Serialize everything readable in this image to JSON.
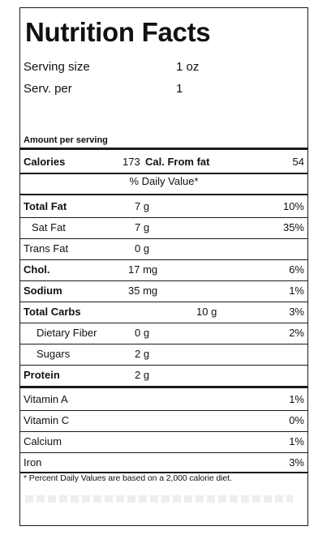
{
  "title": "Nutrition Facts",
  "serving": {
    "size_label": "Serving size",
    "size_value": "1 oz",
    "per_label": "Serv. per",
    "per_value": "1"
  },
  "amount_label": "Amount per serving",
  "calories": {
    "label": "Calories",
    "value": "173",
    "unit_from_fat": "Cal. From fat",
    "fat_value": "54"
  },
  "daily_value_header": "% Daily Value*",
  "nutrients": [
    {
      "label": "Total Fat",
      "amount": "7 g",
      "dv": "10%"
    },
    {
      "label": "Sat Fat",
      "amount": "7 g",
      "dv": "35%"
    },
    {
      "label": "Trans Fat",
      "amount": "0 g",
      "dv": ""
    },
    {
      "label": "Chol.",
      "amount": "17 mg",
      "dv": "6%"
    },
    {
      "label": "Sodium",
      "amount": "35 mg",
      "dv": "1%"
    },
    {
      "label": "Total Carbs",
      "amount": "10 g",
      "dv": "3%"
    },
    {
      "label": "Dietary Fiber",
      "amount": "0 g",
      "dv": "2%"
    },
    {
      "label": "Sugars",
      "amount": "2 g",
      "dv": ""
    },
    {
      "label": "Protein",
      "amount": "2 g",
      "dv": ""
    }
  ],
  "vitamins": [
    {
      "label": "Vitamin A",
      "dv": "1%"
    },
    {
      "label": "Vitamin C",
      "dv": "0%"
    },
    {
      "label": "Calcium",
      "dv": "1%"
    },
    {
      "label": "Iron",
      "dv": "3%"
    }
  ],
  "footnote": "* Percent Daily Values are based on a 2,000 calorie diet."
}
